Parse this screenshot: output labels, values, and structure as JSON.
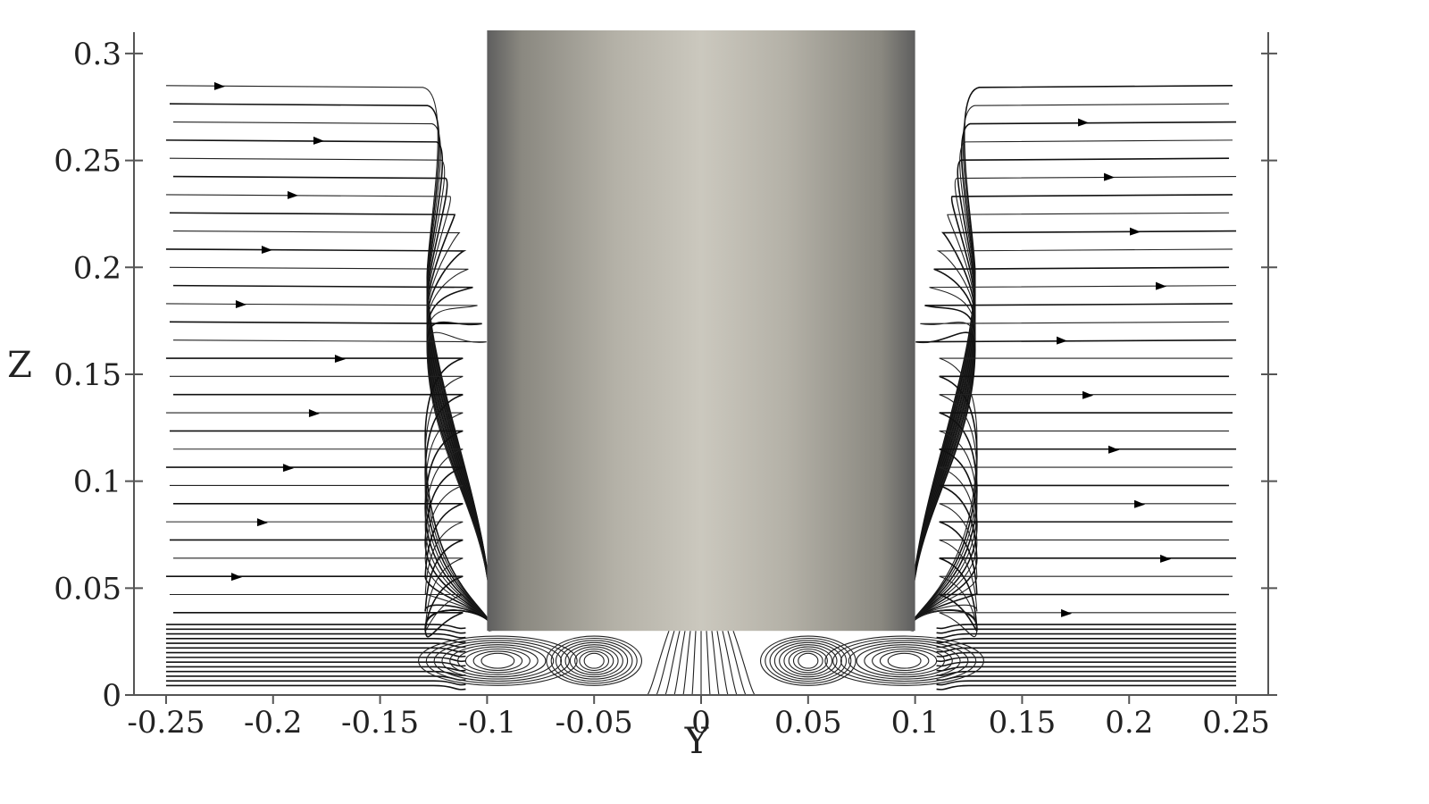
{
  "axes": {
    "x": {
      "label": "Y",
      "ticks": [
        "-0.25",
        "-0.2",
        "-0.15",
        "-0.1",
        "-0.05",
        "0",
        "0.05",
        "0.1",
        "0.15",
        "0.2",
        "0.25"
      ],
      "range": [
        -0.265,
        0.265
      ]
    },
    "z": {
      "label": "Z",
      "ticks": [
        "0",
        "0.05",
        "0.1",
        "0.15",
        "0.2",
        "0.25",
        "0.3"
      ],
      "range": [
        0,
        0.31
      ]
    }
  },
  "body": {
    "name": "cylinder",
    "y_range": [
      -0.1,
      0.1
    ],
    "z_range": [
      0.03,
      0.31
    ],
    "colors": [
      "#5e5e5e",
      "#a7a59c",
      "#cbc8be",
      "#a7a59c",
      "#5e5e5e"
    ]
  },
  "streamline_color": "#111111"
}
